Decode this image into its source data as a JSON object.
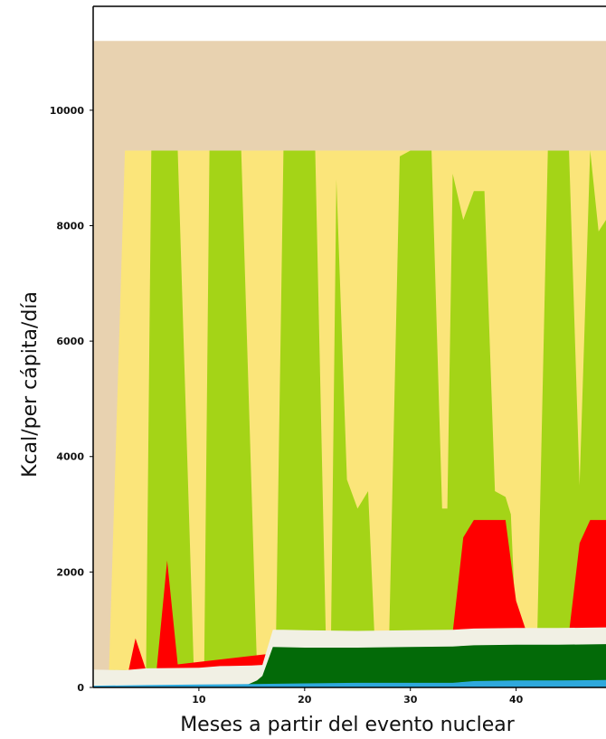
{
  "chart_data": {
    "type": "area",
    "title": "",
    "xlabel": "Meses a partir del evento nuclear",
    "ylabel": "Kcal/per cápita/día",
    "xlim": [
      0,
      48.5
    ],
    "ylim": [
      0,
      11800
    ],
    "x_ticks": [
      10,
      20,
      30,
      40
    ],
    "y_ticks": [
      0,
      2000,
      4000,
      6000,
      8000,
      10000
    ],
    "grid": false,
    "legend": "none",
    "colors": {
      "beige": "#e8d2b0",
      "yellow": "#fbe57a",
      "lightgreen": "#a4d417",
      "red": "#ff0000",
      "cream": "#f1f0e4",
      "darkgreen": "#036a08",
      "cyan": "#2ea8dc",
      "axis": "#000000"
    },
    "series": [
      {
        "color": "#e8d2b0",
        "points": [
          [
            0,
            11200
          ],
          [
            48.5,
            11200
          ]
        ]
      },
      {
        "color": "#fbe57a",
        "points": [
          [
            0,
            300
          ],
          [
            1.5,
            300
          ],
          [
            3,
            9300
          ],
          [
            48.5,
            9300
          ]
        ]
      },
      {
        "color": "#a4d417",
        "points": [
          [
            0,
            300
          ],
          [
            3,
            300
          ],
          [
            5,
            300
          ],
          [
            5.5,
            9300
          ],
          [
            8,
            9300
          ],
          [
            9.5,
            400
          ],
          [
            10.5,
            400
          ],
          [
            11,
            9300
          ],
          [
            14,
            9300
          ],
          [
            15.5,
            300
          ],
          [
            16,
            300
          ],
          [
            17,
            900
          ],
          [
            17.3,
            900
          ],
          [
            18,
            9300
          ],
          [
            21,
            9300
          ],
          [
            22,
            900
          ],
          [
            22.5,
            900
          ],
          [
            23,
            8800
          ],
          [
            24,
            3600
          ],
          [
            25,
            3100
          ],
          [
            26,
            3400
          ],
          [
            26.6,
            900
          ],
          [
            28,
            900
          ],
          [
            29,
            9200
          ],
          [
            30,
            9300
          ],
          [
            31,
            9300
          ],
          [
            32,
            9300
          ],
          [
            33,
            3100
          ],
          [
            33.5,
            3100
          ],
          [
            34,
            8900
          ],
          [
            35,
            8100
          ],
          [
            36,
            8600
          ],
          [
            37,
            8600
          ],
          [
            38,
            3400
          ],
          [
            39,
            3300
          ],
          [
            39.5,
            3000
          ],
          [
            40,
            900
          ],
          [
            42,
            900
          ],
          [
            43,
            9300
          ],
          [
            45,
            9300
          ],
          [
            46,
            3500
          ],
          [
            47,
            9300
          ],
          [
            47.8,
            7900
          ],
          [
            48.5,
            8100
          ]
        ]
      },
      {
        "color": "#ff0000",
        "points": [
          [
            0,
            0
          ],
          [
            3,
            0
          ],
          [
            4,
            850
          ],
          [
            5,
            300
          ],
          [
            6,
            300
          ],
          [
            7,
            2200
          ],
          [
            8,
            400
          ],
          [
            34,
            950
          ],
          [
            35,
            2600
          ],
          [
            36,
            2900
          ],
          [
            39,
            2900
          ],
          [
            40,
            1500
          ],
          [
            41,
            950
          ],
          [
            45,
            950
          ],
          [
            46,
            2500
          ],
          [
            47,
            2900
          ],
          [
            48.5,
            2900
          ]
        ]
      },
      {
        "color": "#f1f0e4",
        "points": [
          [
            0,
            310
          ],
          [
            3,
            300
          ],
          [
            5,
            330
          ],
          [
            10,
            340
          ],
          [
            12,
            370
          ],
          [
            15,
            380
          ],
          [
            16,
            390
          ],
          [
            17,
            1000
          ],
          [
            18,
            1000
          ],
          [
            20,
            990
          ],
          [
            25,
            980
          ],
          [
            30,
            990
          ],
          [
            34,
            1000
          ],
          [
            36,
            1020
          ],
          [
            40,
            1030
          ],
          [
            44,
            1030
          ],
          [
            48.5,
            1040
          ]
        ]
      },
      {
        "color": "#036a08",
        "points": [
          [
            0,
            0
          ],
          [
            14,
            0
          ],
          [
            15.5,
            120
          ],
          [
            16,
            200
          ],
          [
            17,
            700
          ],
          [
            20,
            690
          ],
          [
            25,
            690
          ],
          [
            30,
            700
          ],
          [
            34,
            710
          ],
          [
            36,
            730
          ],
          [
            40,
            740
          ],
          [
            44,
            740
          ],
          [
            48.5,
            750
          ]
        ]
      },
      {
        "color": "#2ea8dc",
        "points": [
          [
            0,
            30
          ],
          [
            5,
            40
          ],
          [
            10,
            50
          ],
          [
            15,
            60
          ],
          [
            20,
            70
          ],
          [
            25,
            80
          ],
          [
            30,
            80
          ],
          [
            34,
            80
          ],
          [
            36,
            110
          ],
          [
            40,
            120
          ],
          [
            44,
            120
          ],
          [
            48.5,
            130
          ]
        ]
      }
    ]
  }
}
